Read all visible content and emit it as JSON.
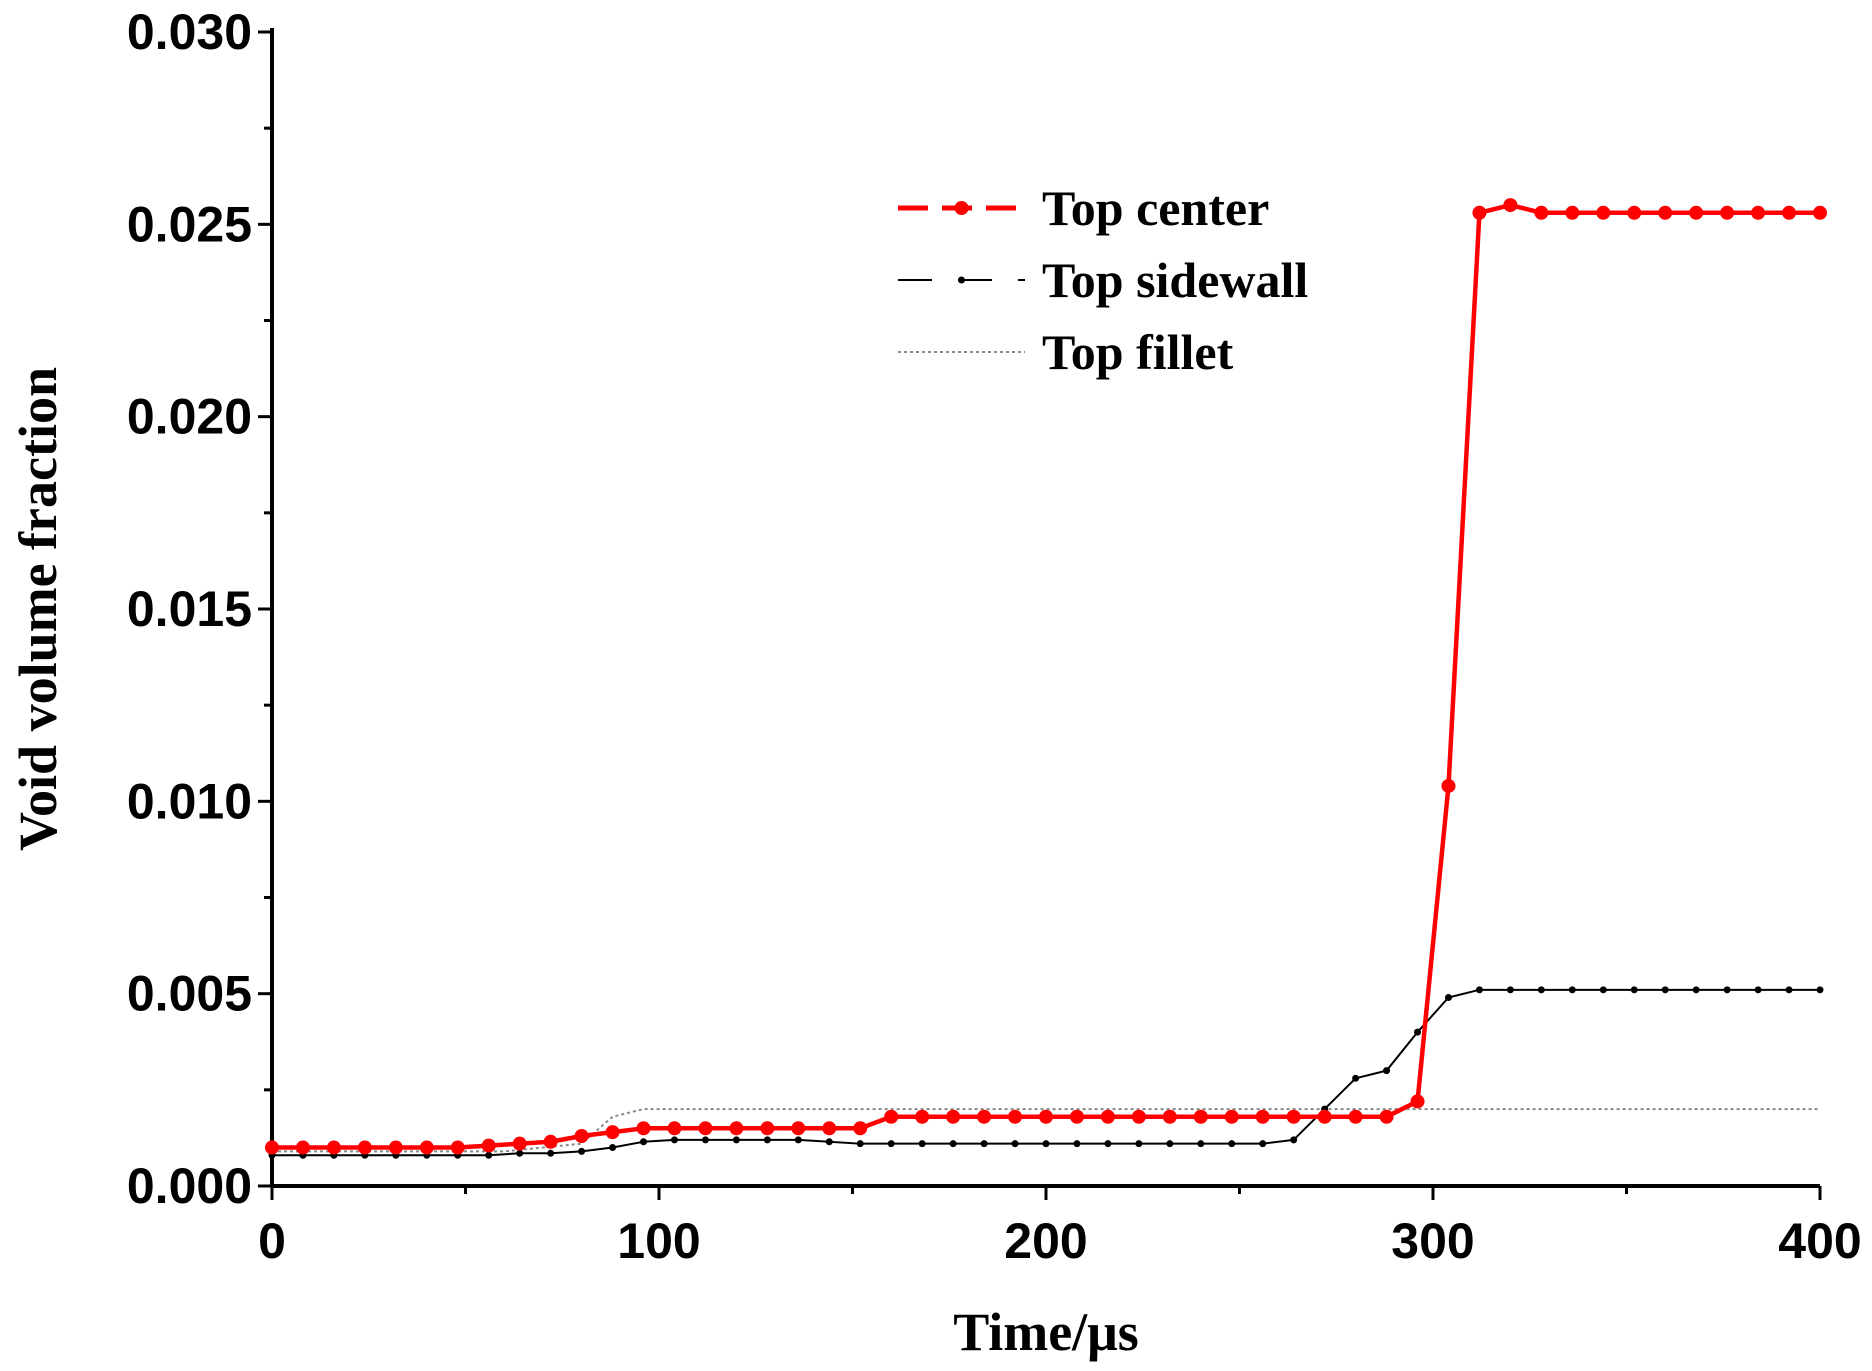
{
  "chart_data": {
    "type": "line",
    "title": "",
    "xlabel": "Time/μs",
    "ylabel": "Void volume fraction",
    "xlim": [
      0,
      400
    ],
    "ylim": [
      0,
      0.03
    ],
    "xticks": [
      0,
      100,
      200,
      300,
      400
    ],
    "xtick_labels": [
      "0",
      "100",
      "200",
      "300",
      "400"
    ],
    "yticks": [
      0,
      0.005,
      0.01,
      0.015,
      0.02,
      0.025,
      0.03
    ],
    "ytick_labels": [
      "0.000",
      "0.005",
      "0.010",
      "0.015",
      "0.020",
      "0.025",
      "0.030"
    ],
    "grid": false,
    "legend_position": "top-right",
    "series": [
      {
        "name": "Top center",
        "color": "#ff0000",
        "style": "solid-with-circle-markers",
        "x": [
          0,
          8,
          16,
          24,
          32,
          40,
          48,
          56,
          64,
          72,
          80,
          88,
          96,
          104,
          112,
          120,
          128,
          136,
          144,
          152,
          160,
          168,
          176,
          184,
          192,
          200,
          208,
          216,
          224,
          232,
          240,
          248,
          256,
          264,
          272,
          280,
          288,
          296,
          304,
          312,
          320,
          328,
          336,
          344,
          352,
          360,
          368,
          376,
          384,
          392,
          400
        ],
        "y": [
          0.001,
          0.001,
          0.001,
          0.001,
          0.001,
          0.001,
          0.001,
          0.00105,
          0.0011,
          0.00115,
          0.0013,
          0.0014,
          0.0015,
          0.0015,
          0.0015,
          0.0015,
          0.0015,
          0.0015,
          0.0015,
          0.0015,
          0.0018,
          0.0018,
          0.0018,
          0.0018,
          0.0018,
          0.0018,
          0.0018,
          0.0018,
          0.0018,
          0.0018,
          0.0018,
          0.0018,
          0.0018,
          0.0018,
          0.0018,
          0.0018,
          0.0018,
          0.0022,
          0.0104,
          0.0253,
          0.0255,
          0.0253,
          0.0253,
          0.0253,
          0.0253,
          0.0253,
          0.0253,
          0.0253,
          0.0253,
          0.0253,
          0.0253
        ]
      },
      {
        "name": "Top sidewall",
        "color": "#000000",
        "style": "thin-with-dot-markers",
        "x": [
          0,
          8,
          16,
          24,
          32,
          40,
          48,
          56,
          64,
          72,
          80,
          88,
          96,
          104,
          112,
          120,
          128,
          136,
          144,
          152,
          160,
          168,
          176,
          184,
          192,
          200,
          208,
          216,
          224,
          232,
          240,
          248,
          256,
          264,
          272,
          280,
          288,
          296,
          304,
          312,
          320,
          328,
          336,
          344,
          352,
          360,
          368,
          376,
          384,
          392,
          400
        ],
        "y": [
          0.0008,
          0.0008,
          0.0008,
          0.0008,
          0.0008,
          0.0008,
          0.0008,
          0.0008,
          0.00085,
          0.00085,
          0.0009,
          0.001,
          0.00115,
          0.0012,
          0.0012,
          0.0012,
          0.0012,
          0.0012,
          0.00115,
          0.0011,
          0.0011,
          0.0011,
          0.0011,
          0.0011,
          0.0011,
          0.0011,
          0.0011,
          0.0011,
          0.0011,
          0.0011,
          0.0011,
          0.0011,
          0.0011,
          0.0012,
          0.002,
          0.0028,
          0.003,
          0.004,
          0.0049,
          0.0051,
          0.0051,
          0.0051,
          0.0051,
          0.0051,
          0.0051,
          0.0051,
          0.0051,
          0.0051,
          0.0051,
          0.0051,
          0.0051
        ]
      },
      {
        "name": "Top fillet",
        "color": "#888888",
        "style": "dotted",
        "x": [
          0,
          20,
          40,
          60,
          80,
          88,
          96,
          120,
          160,
          200,
          250,
          300,
          350,
          400
        ],
        "y": [
          0.0009,
          0.0009,
          0.0009,
          0.0009,
          0.0011,
          0.0018,
          0.002,
          0.002,
          0.002,
          0.002,
          0.002,
          0.002,
          0.002,
          0.002
        ]
      }
    ]
  }
}
